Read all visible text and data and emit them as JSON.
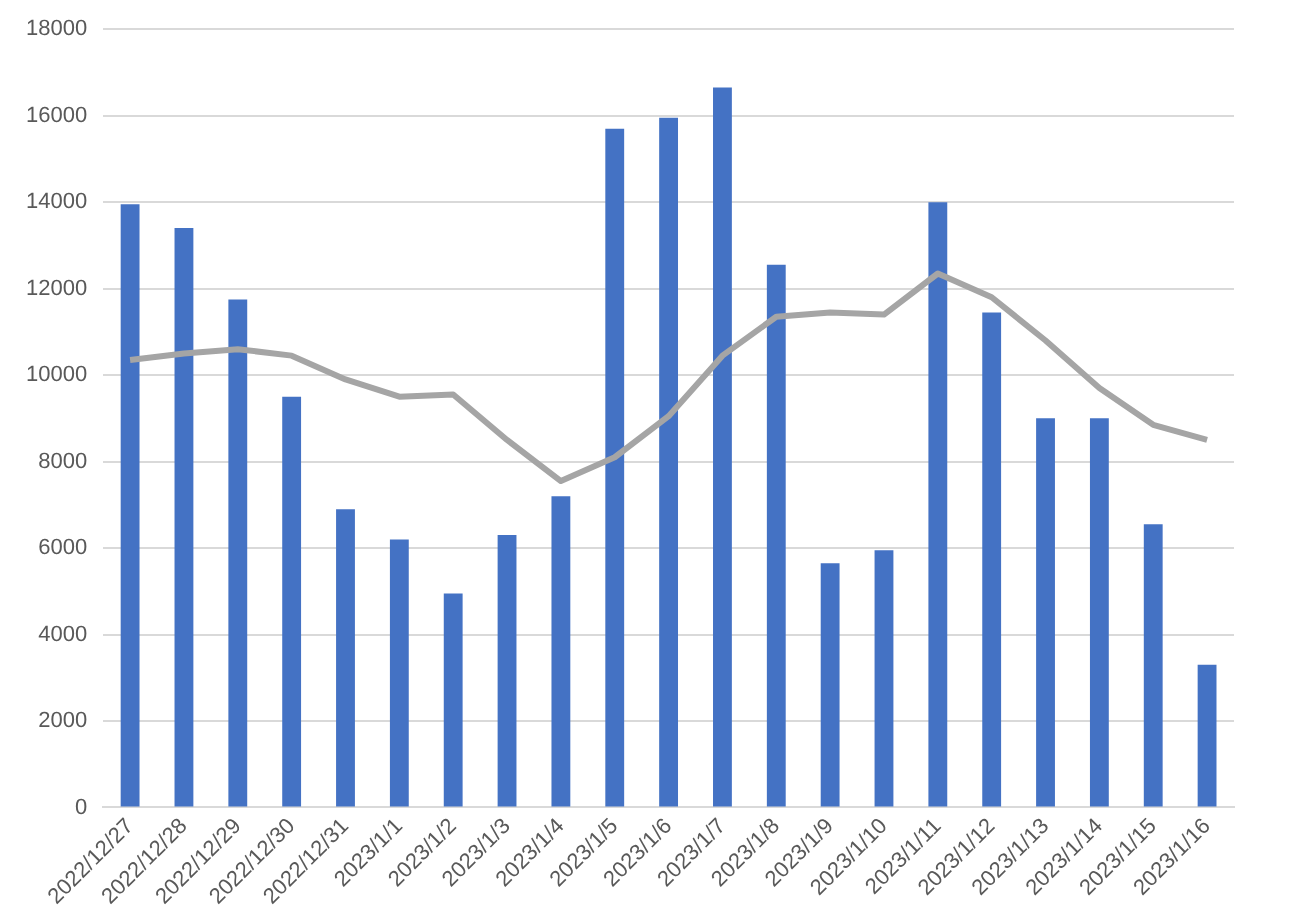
{
  "chart_data": {
    "type": "bar",
    "categories": [
      "2022/12/27",
      "2022/12/28",
      "2022/12/29",
      "2022/12/30",
      "2022/12/31",
      "2023/1/1",
      "2023/1/2",
      "2023/1/3",
      "2023/1/4",
      "2023/1/5",
      "2023/1/6",
      "2023/1/7",
      "2023/1/8",
      "2023/1/9",
      "2023/1/10",
      "2023/1/11",
      "2023/1/12",
      "2023/1/13",
      "2023/1/14",
      "2023/1/15",
      "2023/1/16"
    ],
    "series": [
      {
        "color": "#4472c4",
        "values": [
          13950,
          13400,
          11750,
          9500,
          6900,
          6200,
          4950,
          6300,
          7200,
          15700,
          15950,
          16650,
          12550,
          5650,
          5950,
          14000,
          11450,
          9000,
          9000,
          6550,
          3300
        ]
      },
      {
        "type": "line",
        "color": "#a5a5a5",
        "values": [
          10350,
          10500,
          10600,
          10450,
          9900,
          9500,
          9550,
          8500,
          7550,
          8100,
          9050,
          10450,
          11350,
          11450,
          11400,
          12350,
          11800,
          10800,
          9700,
          8850,
          8500
        ]
      }
    ],
    "ylim": [
      0,
      18000
    ],
    "yticks": [
      0,
      2000,
      4000,
      6000,
      8000,
      10000,
      12000,
      14000,
      16000,
      18000
    ],
    "grid": "y",
    "legend": false,
    "marker": "none"
  }
}
